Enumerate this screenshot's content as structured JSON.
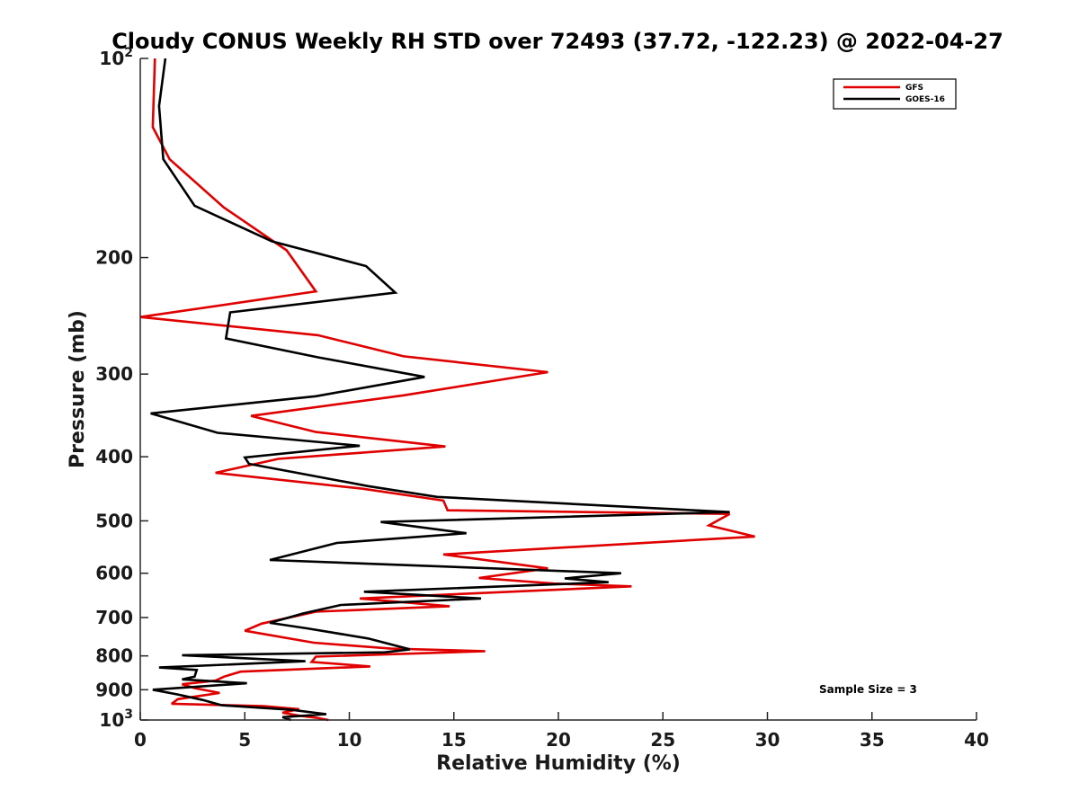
{
  "chart_data": {
    "type": "line",
    "title": "Cloudy CONUS Weekly RH STD over 72493 (37.72, -122.23) @ 2022-04-27",
    "xlabel": "Relative Humidity (%)",
    "ylabel": "Pressure (mb)",
    "xlim": [
      0,
      40
    ],
    "ylim": [
      100,
      1000
    ],
    "y_scale": "log",
    "y_reversed": true,
    "x_ticks": [
      0,
      5,
      10,
      15,
      20,
      25,
      30,
      35,
      40
    ],
    "x_tick_labels": [
      "0",
      "5",
      "10",
      "15",
      "20",
      "25",
      "30",
      "35",
      "40"
    ],
    "y_ticks": [
      100,
      200,
      300,
      400,
      500,
      600,
      700,
      800,
      900,
      1000
    ],
    "y_tick_labels": [
      {
        "base": "10",
        "sup": "2"
      },
      {
        "text": "200"
      },
      {
        "text": "300"
      },
      {
        "text": "400"
      },
      {
        "text": "500"
      },
      {
        "text": "600"
      },
      {
        "text": "700"
      },
      {
        "text": "800"
      },
      {
        "text": "900"
      },
      {
        "base": "10",
        "sup": "3"
      }
    ],
    "grid": false,
    "legend_position": "top-right",
    "annotation": "Sample Size = 3",
    "series": [
      {
        "name": "GFS",
        "color": "#e00000",
        "points": [
          [
            0.7,
            100
          ],
          [
            0.6,
            127
          ],
          [
            1.4,
            142
          ],
          [
            4.0,
            168
          ],
          [
            7.0,
            195
          ],
          [
            8.4,
            225
          ],
          [
            0.0,
            246
          ],
          [
            8.5,
            262
          ],
          [
            12.6,
            282
          ],
          [
            19.5,
            298
          ],
          [
            12.6,
            323
          ],
          [
            5.3,
            347
          ],
          [
            8.4,
            367
          ],
          [
            14.6,
            386
          ],
          [
            6.6,
            403
          ],
          [
            3.6,
            423
          ],
          [
            10.6,
            447
          ],
          [
            14.5,
            466
          ],
          [
            14.7,
            482
          ],
          [
            28.2,
            488
          ],
          [
            27.2,
            508
          ],
          [
            29.4,
            528
          ],
          [
            14.5,
            562
          ],
          [
            19.5,
            590
          ],
          [
            16.2,
            610
          ],
          [
            19.8,
            622
          ],
          [
            23.5,
            628
          ],
          [
            10.5,
            655
          ],
          [
            14.8,
            673
          ],
          [
            8.4,
            686
          ],
          [
            5.8,
            715
          ],
          [
            5.0,
            733
          ],
          [
            8.3,
            764
          ],
          [
            12.0,
            780
          ],
          [
            16.5,
            787
          ],
          [
            8.4,
            802
          ],
          [
            8.2,
            817
          ],
          [
            11.0,
            830
          ],
          [
            4.8,
            845
          ],
          [
            4.0,
            860
          ],
          [
            3.6,
            872
          ],
          [
            2.0,
            883
          ],
          [
            2.6,
            895
          ],
          [
            3.8,
            910
          ],
          [
            1.8,
            930
          ],
          [
            1.5,
            945
          ],
          [
            5.9,
            953
          ],
          [
            7.6,
            963
          ],
          [
            6.8,
            975
          ],
          [
            7.6,
            985
          ],
          [
            8.4,
            992
          ],
          [
            9.0,
            1000
          ]
        ]
      },
      {
        "name": "GOES-16",
        "color": "#000000",
        "points": [
          [
            1.2,
            100
          ],
          [
            0.9,
            118
          ],
          [
            1.1,
            142
          ],
          [
            2.6,
            167
          ],
          [
            6.3,
            189
          ],
          [
            10.8,
            206
          ],
          [
            12.2,
            226
          ],
          [
            4.3,
            242
          ],
          [
            4.1,
            265
          ],
          [
            8.5,
            283
          ],
          [
            13.6,
            303
          ],
          [
            8.4,
            324
          ],
          [
            0.5,
            344
          ],
          [
            3.7,
            368
          ],
          [
            10.5,
            385
          ],
          [
            5.0,
            401
          ],
          [
            5.2,
            410
          ],
          [
            10.9,
            443
          ],
          [
            14.2,
            460
          ],
          [
            28.2,
            485
          ],
          [
            11.5,
            502
          ],
          [
            15.6,
            522
          ],
          [
            9.4,
            540
          ],
          [
            6.2,
            573
          ],
          [
            23.0,
            600
          ],
          [
            20.3,
            611
          ],
          [
            22.4,
            619
          ],
          [
            10.7,
            640
          ],
          [
            16.3,
            655
          ],
          [
            9.6,
            670
          ],
          [
            7.8,
            690
          ],
          [
            6.2,
            713
          ],
          [
            8.0,
            727
          ],
          [
            10.9,
            753
          ],
          [
            12.9,
            782
          ],
          [
            11.7,
            790
          ],
          [
            2.0,
            798
          ],
          [
            7.9,
            815
          ],
          [
            0.9,
            833
          ],
          [
            2.7,
            840
          ],
          [
            2.6,
            860
          ],
          [
            2.0,
            868
          ],
          [
            5.1,
            880
          ],
          [
            0.6,
            900
          ],
          [
            1.8,
            915
          ],
          [
            3.0,
            933
          ],
          [
            3.9,
            950
          ],
          [
            7.2,
            965
          ],
          [
            8.9,
            980
          ],
          [
            6.8,
            990
          ],
          [
            7.2,
            1000
          ]
        ]
      }
    ]
  }
}
